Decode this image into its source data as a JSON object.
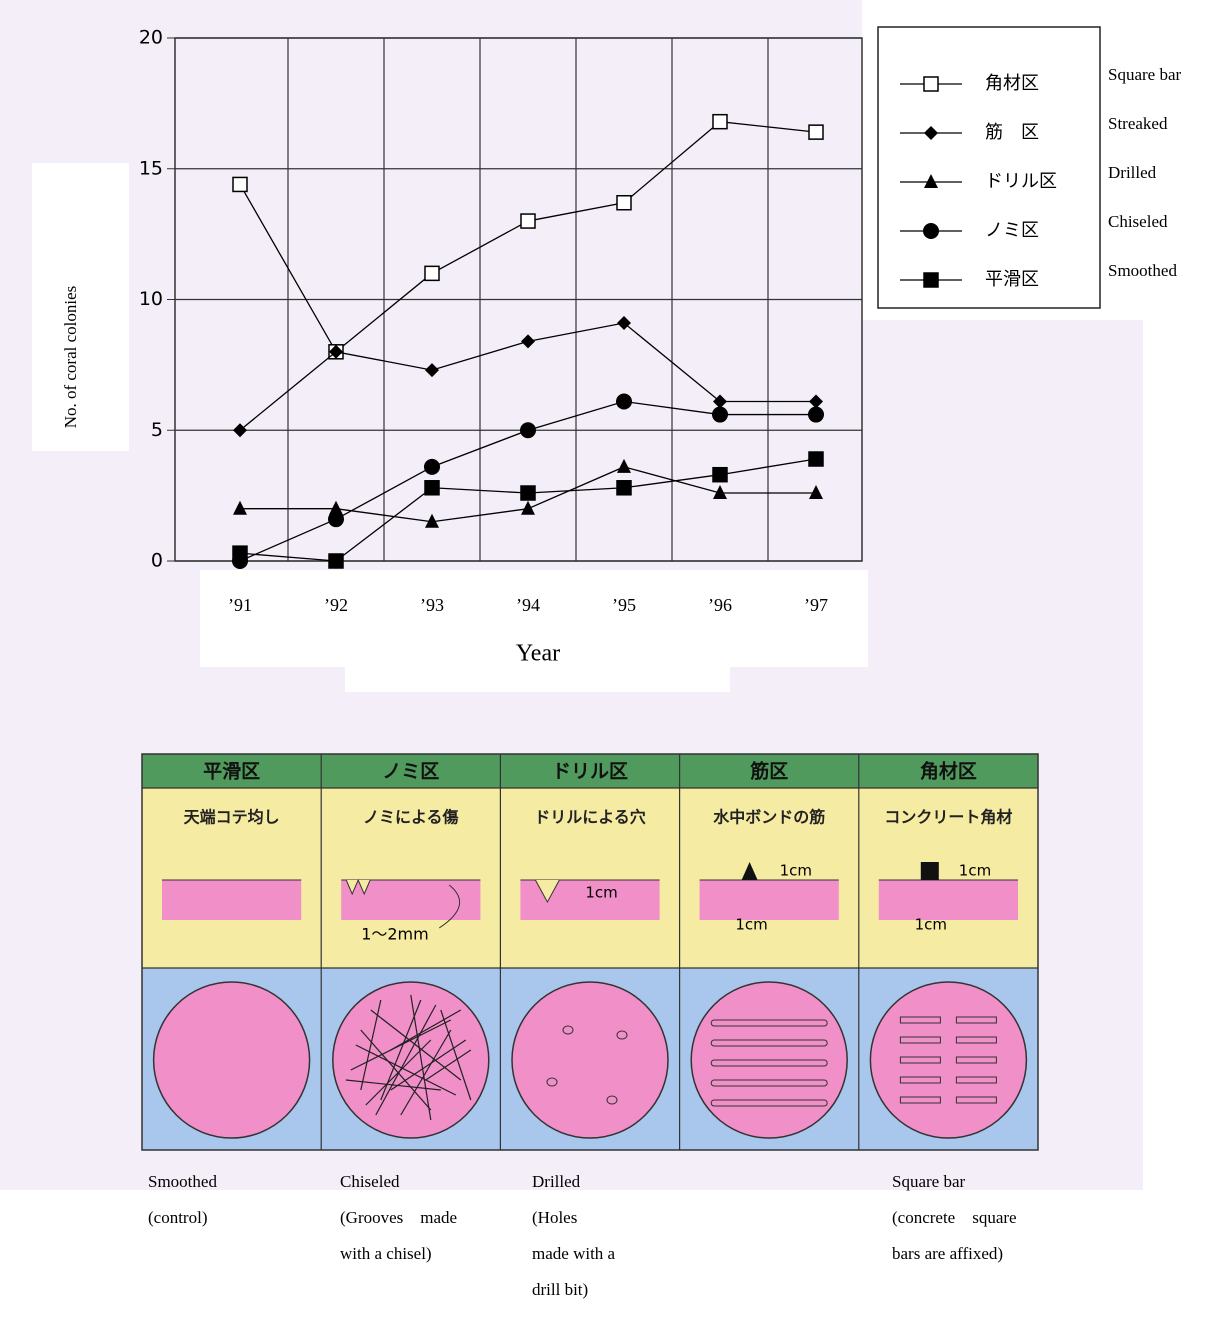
{
  "chart_data": {
    "type": "line",
    "ylabel": "No. of coral colonies",
    "xlabel": "Year",
    "categories": [
      "’91",
      "’92",
      "’93",
      "’94",
      "’95",
      "’96",
      "’97"
    ],
    "ylim": [
      0,
      20
    ],
    "yticks": [
      0,
      5,
      10,
      15,
      20
    ],
    "grid": true,
    "legend": "right",
    "series": [
      {
        "name": "角材区",
        "translation": "Square bar",
        "marker": "square-open",
        "color": "#000000",
        "values": [
          14.4,
          8.0,
          11.0,
          13.0,
          13.7,
          16.8,
          16.4
        ]
      },
      {
        "name": "筋　区",
        "translation": "Streaked",
        "marker": "diamond",
        "color": "#000000",
        "values": [
          5.0,
          8.0,
          7.3,
          8.4,
          9.1,
          6.1,
          6.1
        ]
      },
      {
        "name": "ドリル区",
        "translation": "Drilled",
        "marker": "triangle",
        "color": "#000000",
        "values": [
          2.0,
          2.0,
          1.5,
          2.0,
          3.6,
          2.6,
          2.6
        ]
      },
      {
        "name": "ノミ区",
        "translation": "Chiseled",
        "marker": "circle",
        "color": "#000000",
        "values": [
          0,
          1.6,
          3.6,
          5.0,
          6.1,
          5.6,
          5.6
        ]
      },
      {
        "name": "平滑区",
        "translation": "Smoothed",
        "marker": "square",
        "color": "#000000",
        "values": [
          0.3,
          0,
          2.8,
          2.6,
          2.8,
          3.3,
          3.9
        ]
      }
    ]
  },
  "diagram": {
    "columns": [
      {
        "header": "平滑区",
        "desc": "天端コテ均し",
        "caption": [
          "Smoothed",
          "(control)"
        ]
      },
      {
        "header": "ノミ区",
        "desc": "ノミによる傷",
        "annotations": [
          "1～2mm"
        ],
        "caption": [
          "Chiseled",
          "(Grooves　made",
          "with a chisel)"
        ]
      },
      {
        "header": "ドリル区",
        "desc": "ドリルによる穴",
        "annotations": [
          "1cm"
        ],
        "caption": [
          "Drilled",
          "(Holes",
          "made with a",
          "drill bit)"
        ]
      },
      {
        "header": "筋区",
        "desc": "水中ボンドの筋",
        "annotations": [
          "1cm",
          "1cm"
        ]
      },
      {
        "header": "角材区",
        "desc": "コンクリート角材",
        "annotations": [
          "1cm",
          "1cm"
        ],
        "caption": [
          "Square bar",
          "(concrete　square",
          "bars are affixed)"
        ]
      }
    ]
  }
}
